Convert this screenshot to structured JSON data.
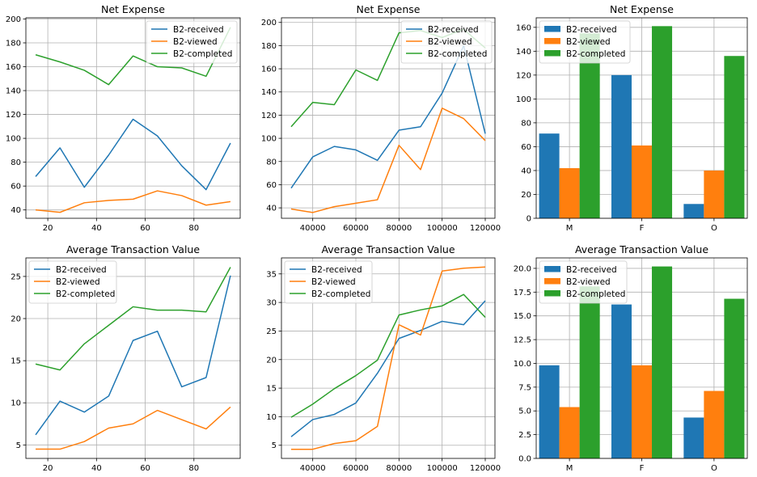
{
  "chart_data": [
    {
      "type": "line",
      "title": "Net Expense",
      "xlim": [
        11,
        99
      ],
      "ylim": [
        33,
        201
      ],
      "xticks": [
        20,
        40,
        60,
        80
      ],
      "yticks": [
        40,
        60,
        80,
        100,
        120,
        140,
        160,
        180,
        200
      ],
      "grid": true,
      "legend": "top-right",
      "x": [
        15,
        25,
        35,
        45,
        55,
        65,
        75,
        85,
        95
      ],
      "series": [
        {
          "name": "B2-received",
          "color": "#1f77b4",
          "values": [
            68,
            92,
            59,
            86,
            116,
            102,
            77,
            57,
            96
          ]
        },
        {
          "name": "B2-viewed",
          "color": "#ff7f0e",
          "values": [
            40,
            38,
            46,
            48,
            49,
            56,
            52,
            44,
            47
          ]
        },
        {
          "name": "B2-completed",
          "color": "#2ca02c",
          "values": [
            170,
            164,
            157,
            145,
            169,
            160,
            159,
            152,
            193
          ]
        }
      ]
    },
    {
      "type": "line",
      "title": "Net Expense",
      "xlim": [
        25500,
        124500
      ],
      "ylim": [
        31,
        204
      ],
      "xticks": [
        40000,
        60000,
        80000,
        100000,
        120000
      ],
      "yticks": [
        40,
        60,
        80,
        100,
        120,
        140,
        160,
        180,
        200
      ],
      "grid": true,
      "legend": "top-right",
      "x": [
        30000,
        40000,
        50000,
        60000,
        70000,
        80000,
        90000,
        100000,
        110000,
        120000
      ],
      "series": [
        {
          "name": "B2-received",
          "color": "#1f77b4",
          "values": [
            57,
            84,
            93,
            90,
            81,
            107,
            110,
            139,
            180,
            104
          ]
        },
        {
          "name": "B2-viewed",
          "color": "#ff7f0e",
          "values": [
            39,
            36,
            41,
            44,
            47,
            94,
            73,
            126,
            117,
            98
          ]
        },
        {
          "name": "B2-completed",
          "color": "#2ca02c",
          "values": [
            110,
            131,
            129,
            159,
            150,
            191,
            193,
            187,
            194,
            178
          ]
        }
      ]
    },
    {
      "type": "bar",
      "title": "Net Expense",
      "ylim": [
        0,
        168
      ],
      "yticks": [
        0,
        20,
        40,
        60,
        80,
        100,
        120,
        140,
        160
      ],
      "grid": true,
      "legend": "top-left",
      "categories": [
        "M",
        "F",
        "O"
      ],
      "series": [
        {
          "name": "B2-received",
          "color": "#1f77b4",
          "values": [
            71,
            120,
            12
          ]
        },
        {
          "name": "B2-viewed",
          "color": "#ff7f0e",
          "values": [
            42,
            61,
            40
          ]
        },
        {
          "name": "B2-completed",
          "color": "#2ca02c",
          "values": [
            155,
            161,
            136
          ]
        }
      ]
    },
    {
      "type": "line",
      "title": "Average Transaction Value",
      "xlim": [
        11,
        99
      ],
      "ylim": [
        3.4,
        27.2
      ],
      "xticks": [
        20,
        40,
        60,
        80
      ],
      "yticks": [
        5,
        10,
        15,
        20,
        25
      ],
      "grid": true,
      "legend": "top-left",
      "x": [
        15,
        25,
        35,
        45,
        55,
        65,
        75,
        85,
        95
      ],
      "series": [
        {
          "name": "B2-received",
          "color": "#1f77b4",
          "values": [
            6.2,
            10.2,
            8.9,
            10.8,
            17.4,
            18.5,
            11.9,
            13.0,
            25.1
          ]
        },
        {
          "name": "B2-viewed",
          "color": "#ff7f0e",
          "values": [
            4.5,
            4.5,
            5.4,
            7.0,
            7.5,
            9.1,
            8.0,
            6.9,
            9.5
          ]
        },
        {
          "name": "B2-completed",
          "color": "#2ca02c",
          "values": [
            14.6,
            13.9,
            17.0,
            19.2,
            21.4,
            21.0,
            21.0,
            20.8,
            26.1
          ]
        }
      ]
    },
    {
      "type": "line",
      "title": "Average Transaction Value",
      "xlim": [
        25500,
        124500
      ],
      "ylim": [
        2.7,
        37.8
      ],
      "xticks": [
        40000,
        60000,
        80000,
        100000,
        120000
      ],
      "yticks": [
        5,
        10,
        15,
        20,
        25,
        30,
        35
      ],
      "grid": true,
      "legend": "top-left",
      "x": [
        30000,
        40000,
        50000,
        60000,
        70000,
        80000,
        90000,
        100000,
        110000,
        120000
      ],
      "series": [
        {
          "name": "B2-received",
          "color": "#1f77b4",
          "values": [
            6.5,
            9.5,
            10.4,
            12.4,
            17.6,
            23.7,
            25.1,
            26.7,
            26.1,
            30.3
          ]
        },
        {
          "name": "B2-viewed",
          "color": "#ff7f0e",
          "values": [
            4.3,
            4.3,
            5.3,
            5.8,
            8.3,
            26.1,
            24.3,
            35.5,
            36.0,
            36.2
          ]
        },
        {
          "name": "B2-completed",
          "color": "#2ca02c",
          "values": [
            9.9,
            12.2,
            14.9,
            17.2,
            19.9,
            27.8,
            28.7,
            29.4,
            31.4,
            27.4
          ]
        }
      ]
    },
    {
      "type": "bar",
      "title": "Average Transaction Value",
      "ylim": [
        0,
        21.1
      ],
      "yticks": [
        0.0,
        2.5,
        5.0,
        7.5,
        10.0,
        12.5,
        15.0,
        17.5,
        20.0
      ],
      "yticklabels": [
        "0.0",
        "2.5",
        "5.0",
        "7.5",
        "10.0",
        "12.5",
        "15.0",
        "17.5",
        "20.0"
      ],
      "grid": true,
      "legend": "top-left",
      "categories": [
        "M",
        "F",
        "O"
      ],
      "series": [
        {
          "name": "B2-received",
          "color": "#1f77b4",
          "values": [
            9.8,
            16.2,
            4.3
          ]
        },
        {
          "name": "B2-viewed",
          "color": "#ff7f0e",
          "values": [
            5.4,
            9.8,
            7.1
          ]
        },
        {
          "name": "B2-completed",
          "color": "#2ca02c",
          "values": [
            18.1,
            20.2,
            16.8
          ]
        }
      ]
    }
  ]
}
